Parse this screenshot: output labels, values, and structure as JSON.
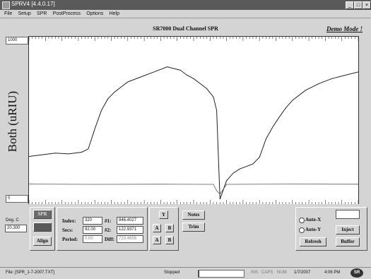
{
  "window": {
    "title": "SPRV4 [4.4.0.17]",
    "controls": [
      "_",
      "□",
      "×"
    ]
  },
  "menu": [
    "File",
    "Setup",
    "SPR",
    "PostProcess",
    "Options",
    "Help"
  ],
  "chart": {
    "title": "SR7000 Dual Channel SPR",
    "demo_mode": "Demo Mode !",
    "y_max": "1000",
    "y_min": "0",
    "y_label": "Both (uRIU)"
  },
  "chart_data": {
    "type": "line",
    "title": "SR7000 Dual Channel SPR",
    "xlabel": "",
    "ylabel": "Both (uRIU)",
    "xlim": [
      0,
      100
    ],
    "ylim": [
      0,
      1000
    ],
    "grid": false,
    "series": [
      {
        "color": "#222222",
        "x": [
          0,
          4,
          8,
          12,
          16,
          18,
          20,
          22,
          24,
          26,
          28,
          30,
          34,
          38,
          42,
          46,
          48,
          50,
          52,
          54,
          56,
          57,
          58,
          60,
          62,
          64,
          66,
          68,
          70,
          72,
          74,
          76,
          78,
          80,
          84,
          88,
          92,
          96,
          100
        ],
        "y": [
          285,
          295,
          305,
          300,
          310,
          330,
          450,
          560,
          630,
          670,
          700,
          730,
          760,
          790,
          820,
          800,
          770,
          750,
          720,
          690,
          640,
          560,
          30,
          140,
          185,
          210,
          225,
          240,
          280,
          390,
          460,
          520,
          575,
          620,
          680,
          720,
          750,
          770,
          790
        ]
      },
      {
        "color": "#555555",
        "x": [
          0,
          20,
          40,
          56,
          57,
          58,
          60,
          80,
          100
        ],
        "y": [
          120,
          118,
          119,
          118,
          80,
          60,
          118,
          120,
          119
        ]
      }
    ]
  },
  "controls": {
    "deg_c_label": "Deg. C",
    "deg_c_value": "20.300",
    "spr_button": "SPR",
    "align_button": "Align",
    "index_label": "Index:",
    "index_value": "320",
    "secs_label": "Secs:",
    "secs_value": "92.00",
    "period_label": "Period:",
    "period_value": "0.00",
    "n1_label": "#1:",
    "n1_value": "846.4027",
    "n2_label": "#2:",
    "n2_value": "122.9371",
    "diff_label": "Diff:",
    "diff_value": "723.4656",
    "y_button": "Y",
    "small_buttons": [
      "A",
      "B",
      "A",
      "B"
    ],
    "notes_button": "Notes",
    "trim_button": "Trim",
    "auto_x": "Auto-X",
    "auto_y": "Auto-Y",
    "refresh_button": "Refresh",
    "inject_button": "Inject",
    "buffer_button": "Buffer"
  },
  "status": {
    "file": "File: [SPR_1-7-2007.TXT]",
    "state": "Stopped",
    "progress": 0.02,
    "ins": "INS",
    "caps": "CAPS",
    "num": "NUM",
    "date": "1/7/2007",
    "time": "4:06 PM",
    "logo": "SR"
  }
}
